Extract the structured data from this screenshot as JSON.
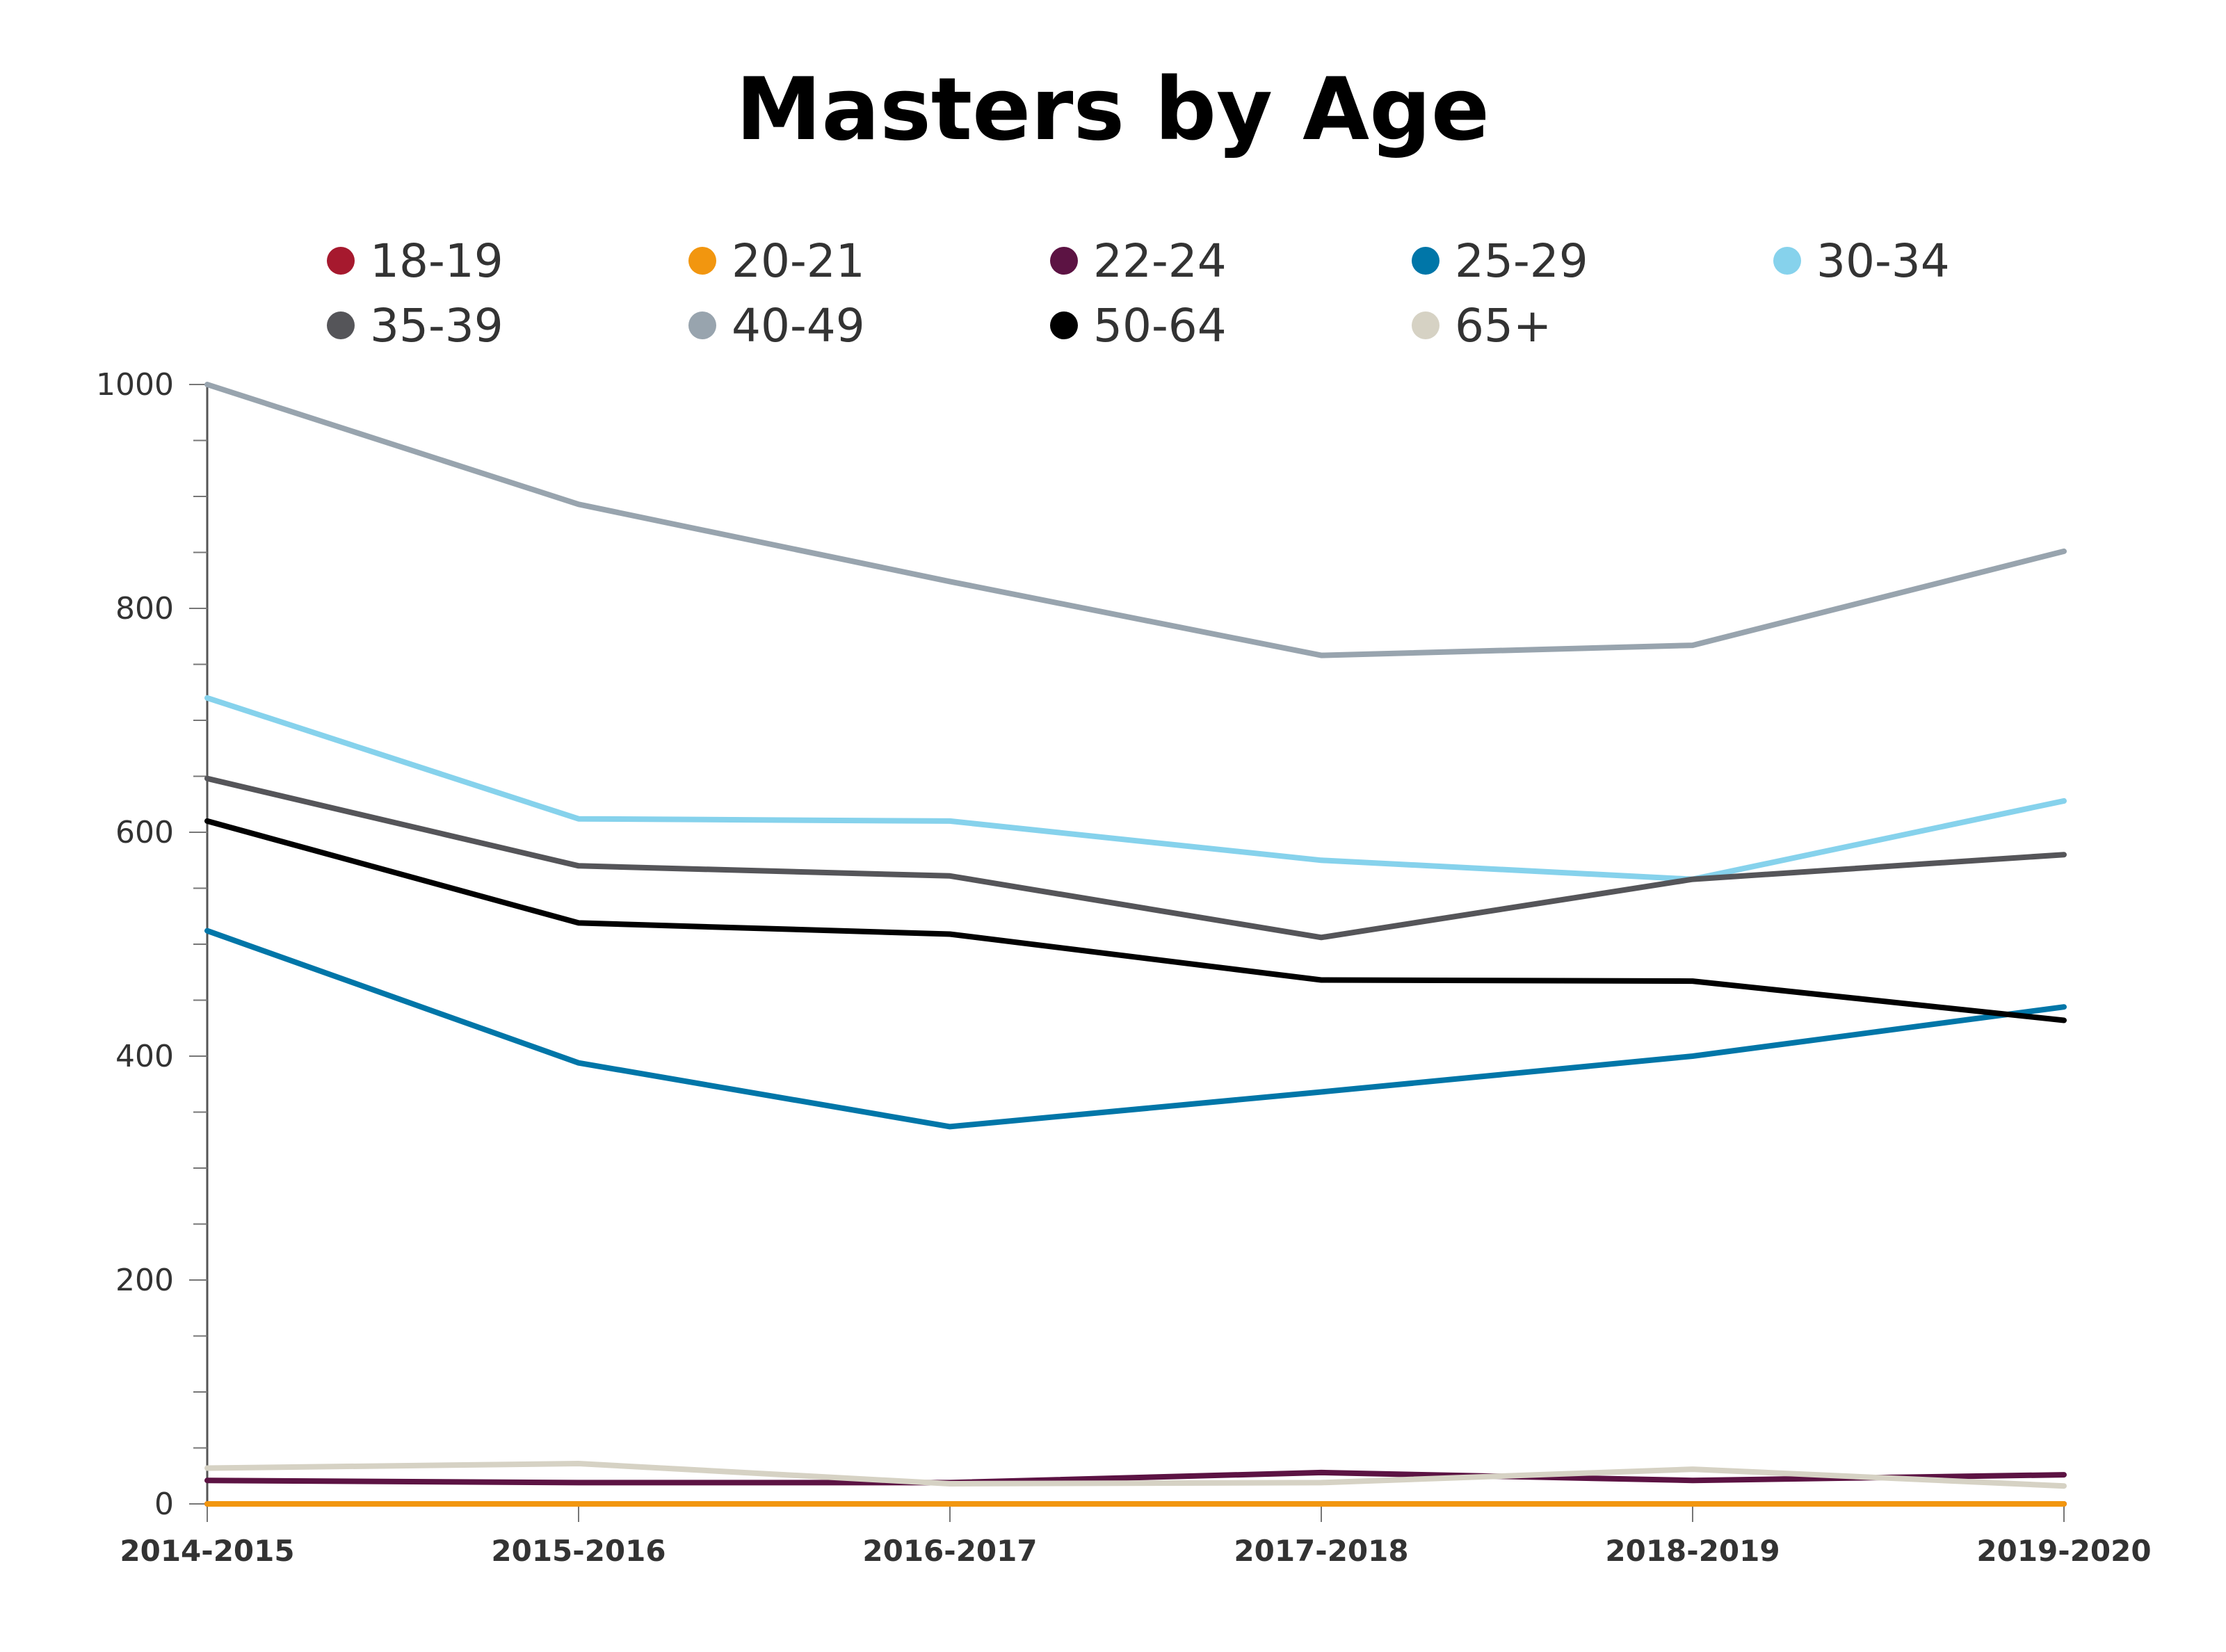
{
  "chart_data": {
    "type": "line",
    "title": "Masters by Age",
    "xlabel": "",
    "ylabel": "",
    "ylim": [
      0,
      1000
    ],
    "y_major_ticks": [
      0,
      200,
      400,
      600,
      800,
      1000
    ],
    "y_minor_step": 50,
    "grid": false,
    "legend_position": "top",
    "categories": [
      "2014-2015",
      "2015-2016",
      "2016-2017",
      "2017-2018",
      "2018-2019",
      "2019-2020"
    ],
    "series": [
      {
        "name": "18-19",
        "color": "#a6192e",
        "values": [
          0,
          0,
          0,
          0,
          0,
          0
        ]
      },
      {
        "name": "20-21",
        "color": "#f2960f",
        "values": [
          0,
          0,
          0,
          0,
          0,
          0
        ]
      },
      {
        "name": "22-24",
        "color": "#5c1343",
        "values": [
          21,
          19,
          19,
          28,
          21,
          26
        ]
      },
      {
        "name": "25-29",
        "color": "#0076a8",
        "values": [
          512,
          394,
          337,
          368,
          400,
          444
        ]
      },
      {
        "name": "30-34",
        "color": "#86d2ec",
        "values": [
          720,
          612,
          610,
          575,
          558,
          628
        ]
      },
      {
        "name": "35-39",
        "color": "#555559",
        "values": [
          648,
          570,
          561,
          506,
          558,
          580
        ]
      },
      {
        "name": "40-49",
        "color": "#98a4ae",
        "values": [
          1000,
          893,
          824,
          758,
          767,
          851
        ]
      },
      {
        "name": "50-64",
        "color": "#000000",
        "values": [
          610,
          519,
          509,
          468,
          467,
          432
        ]
      },
      {
        "name": "65+",
        "color": "#d6d2c4",
        "values": [
          32,
          36,
          18,
          19,
          31,
          16
        ]
      }
    ]
  }
}
